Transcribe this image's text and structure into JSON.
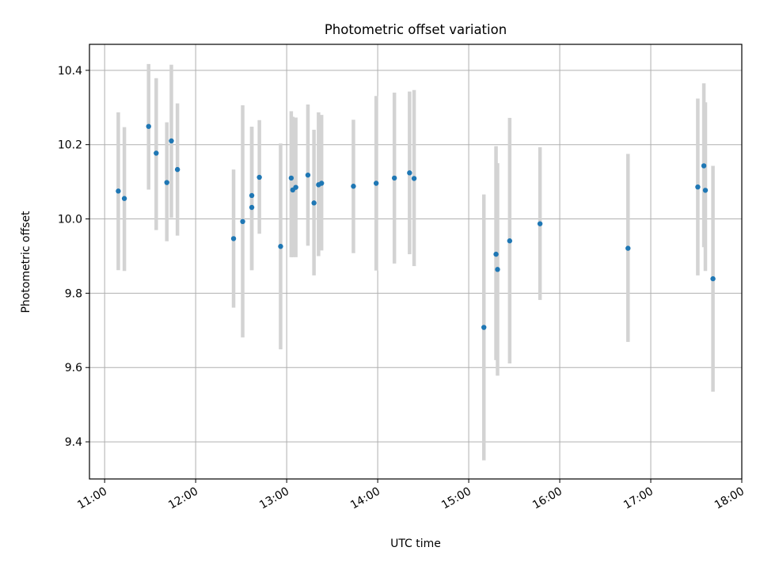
{
  "chart_data": {
    "type": "scatter",
    "title": "Photometric offset variation",
    "xlabel": "UTC time",
    "ylabel": "Photometric offset",
    "x_tick_labels": [
      "11:00",
      "12:00",
      "13:00",
      "14:00",
      "15:00",
      "16:00",
      "17:00",
      "18:00"
    ],
    "y_tick_labels": [
      "9.4",
      "9.6",
      "9.8",
      "10.0",
      "10.2",
      "10.4"
    ],
    "xlim": [
      "10:50",
      "18:00"
    ],
    "ylim": [
      9.3,
      10.47
    ],
    "grid": true,
    "point_color": "#1f77b4",
    "errorbar_color": "#d3d3d3",
    "points": [
      {
        "t": "11:09",
        "y": 10.075,
        "lo": 9.862,
        "hi": 10.287
      },
      {
        "t": "11:13",
        "y": 10.055,
        "lo": 9.86,
        "hi": 10.247
      },
      {
        "t": "11:29",
        "y": 10.249,
        "lo": 10.079,
        "hi": 10.417
      },
      {
        "t": "11:34",
        "y": 10.177,
        "lo": 9.97,
        "hi": 10.379
      },
      {
        "t": "11:41",
        "y": 10.098,
        "lo": 9.94,
        "hi": 10.26
      },
      {
        "t": "11:44",
        "y": 10.21,
        "lo": 10.003,
        "hi": 10.415
      },
      {
        "t": "11:48",
        "y": 10.133,
        "lo": 9.955,
        "hi": 10.311
      },
      {
        "t": "12:25",
        "y": 9.947,
        "lo": 9.761,
        "hi": 10.133
      },
      {
        "t": "12:31",
        "y": 9.993,
        "lo": 9.681,
        "hi": 10.306
      },
      {
        "t": "12:37",
        "y": 10.031,
        "lo": 9.862,
        "hi": 10.248
      },
      {
        "t": "12:37",
        "y": 10.063,
        "lo": 9.862,
        "hi": 10.248
      },
      {
        "t": "12:42",
        "y": 10.112,
        "lo": 9.96,
        "hi": 10.266
      },
      {
        "t": "12:56",
        "y": 9.926,
        "lo": 9.649,
        "hi": 10.203
      },
      {
        "t": "13:03",
        "y": 10.11,
        "lo": 9.897,
        "hi": 10.29
      },
      {
        "t": "13:04",
        "y": 10.078,
        "lo": 9.897,
        "hi": 10.275
      },
      {
        "t": "13:06",
        "y": 10.085,
        "lo": 9.897,
        "hi": 10.273
      },
      {
        "t": "13:14",
        "y": 10.118,
        "lo": 9.928,
        "hi": 10.308
      },
      {
        "t": "13:18",
        "y": 10.043,
        "lo": 9.848,
        "hi": 10.24
      },
      {
        "t": "13:21",
        "y": 10.092,
        "lo": 9.9,
        "hi": 10.287
      },
      {
        "t": "13:23",
        "y": 10.096,
        "lo": 9.915,
        "hi": 10.28
      },
      {
        "t": "13:44",
        "y": 10.088,
        "lo": 9.908,
        "hi": 10.267
      },
      {
        "t": "13:59",
        "y": 10.096,
        "lo": 9.861,
        "hi": 10.331
      },
      {
        "t": "14:11",
        "y": 10.11,
        "lo": 9.88,
        "hi": 10.34
      },
      {
        "t": "14:21",
        "y": 10.124,
        "lo": 9.905,
        "hi": 10.343
      },
      {
        "t": "14:24",
        "y": 10.109,
        "lo": 9.873,
        "hi": 10.347
      },
      {
        "t": "15:10",
        "y": 9.708,
        "lo": 9.35,
        "hi": 10.066
      },
      {
        "t": "15:18",
        "y": 9.905,
        "lo": 9.62,
        "hi": 10.196
      },
      {
        "t": "15:19",
        "y": 9.864,
        "lo": 9.578,
        "hi": 10.15
      },
      {
        "t": "15:27",
        "y": 9.941,
        "lo": 9.611,
        "hi": 10.272
      },
      {
        "t": "15:47",
        "y": 9.987,
        "lo": 9.782,
        "hi": 10.193
      },
      {
        "t": "16:45",
        "y": 9.921,
        "lo": 9.669,
        "hi": 10.175
      },
      {
        "t": "17:31",
        "y": 10.086,
        "lo": 9.848,
        "hi": 10.324
      },
      {
        "t": "17:35",
        "y": 10.143,
        "lo": 9.924,
        "hi": 10.365
      },
      {
        "t": "17:36",
        "y": 10.077,
        "lo": 9.86,
        "hi": 10.314
      },
      {
        "t": "17:41",
        "y": 9.839,
        "lo": 9.535,
        "hi": 10.143
      }
    ]
  }
}
